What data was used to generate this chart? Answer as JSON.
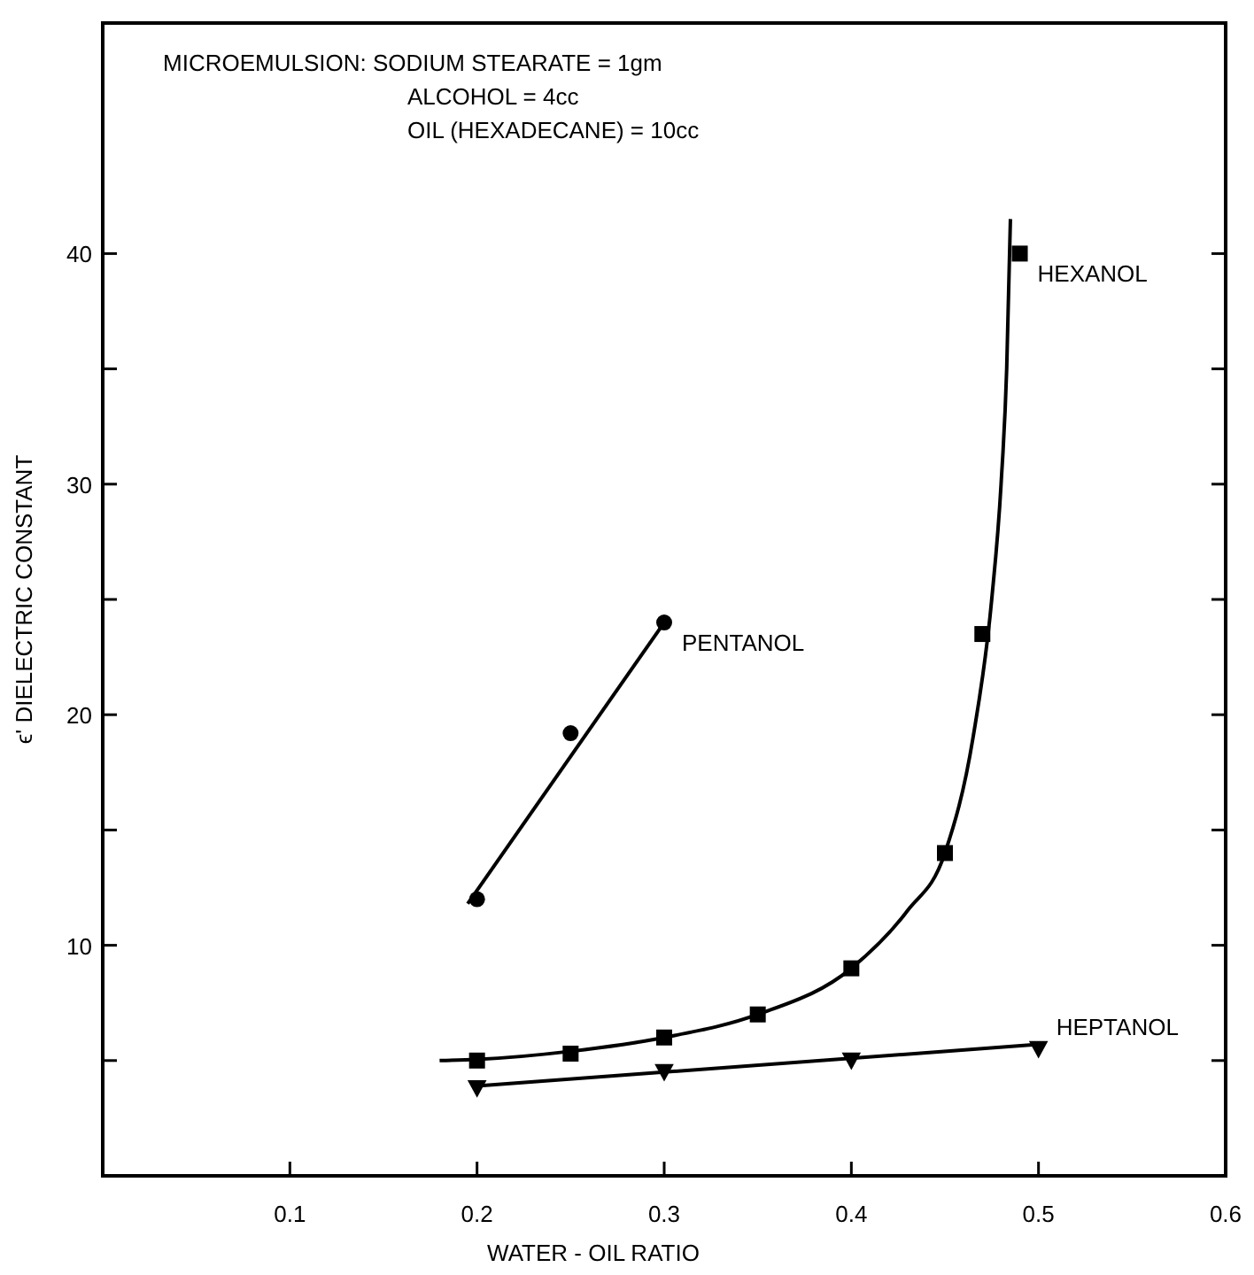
{
  "chart_data": {
    "type": "scatter",
    "xlabel": "WATER - OIL RATIO",
    "ylabel": "ϵ' DIELECTRIC CONSTANT",
    "annotations": [
      "MICROEMULSION: SODIUM STEARATE = 1gm",
      "ALCOHOL = 4cc",
      "OIL (HEXADECANE) = 10cc"
    ],
    "xlim": [
      0,
      0.6
    ],
    "xticks": [
      0.1,
      0.2,
      0.3,
      0.4,
      0.5,
      0.6
    ],
    "ylim": [
      0,
      50
    ],
    "yticks": [
      {
        "value": 5,
        "label": null
      },
      10,
      {
        "value": 15,
        "label": null
      },
      20,
      {
        "value": 25,
        "label": null
      },
      30,
      {
        "value": 35,
        "label": null
      },
      40
    ],
    "grid": false,
    "series": [
      {
        "type": "line",
        "color": "#000000",
        "marker": "none",
        "x": [
          0.195,
          0.3
        ],
        "values": [
          11.8,
          24
        ]
      },
      {
        "type": "line",
        "color": "#000000",
        "marker": "none",
        "x": [
          0.18,
          0.2,
          0.25,
          0.3,
          0.35,
          0.4,
          0.43,
          0.45,
          0.465,
          0.475,
          0.48,
          0.483,
          0.485
        ],
        "values": [
          5,
          5.05,
          5.4,
          6,
          7,
          9,
          11.5,
          14,
          19,
          25,
          30,
          35,
          41.5
        ]
      },
      {
        "type": "line",
        "color": "#000000",
        "marker": "none",
        "x": [
          0.2,
          0.5
        ],
        "values": [
          3.9,
          5.7
        ]
      },
      {
        "name": "PENTANOL",
        "color": "#000000",
        "marker": "circle",
        "x": [
          0.2,
          0.25,
          0.3
        ],
        "values": [
          12,
          19.2,
          24
        ]
      },
      {
        "name": "HEXANOL",
        "color": "#000000",
        "marker": "square",
        "x": [
          0.2,
          0.25,
          0.3,
          0.35,
          0.4,
          0.45,
          0.47,
          0.49
        ],
        "values": [
          5,
          5.3,
          6,
          7,
          9,
          14,
          23.5,
          40
        ]
      },
      {
        "name": "HEPTANOL",
        "color": "#000000",
        "marker": "triangle",
        "x": [
          0.2,
          0.3,
          0.4,
          0.5
        ],
        "values": [
          3.8,
          4.5,
          5,
          5.5
        ]
      }
    ]
  }
}
